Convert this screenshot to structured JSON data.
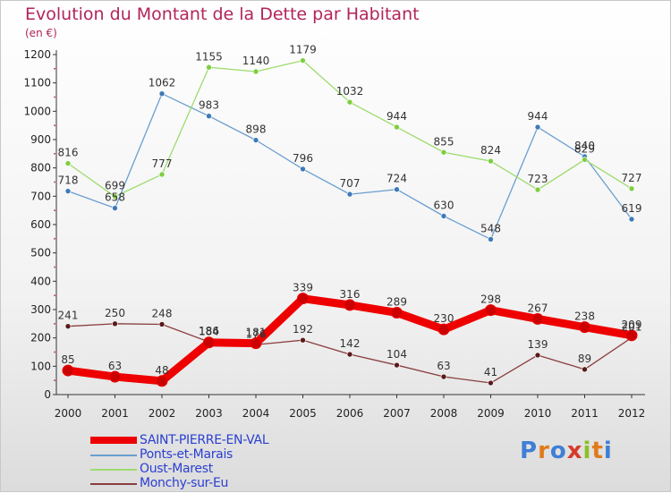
{
  "header": {
    "title": "Evolution du Montant de la Dette par Habitant",
    "subtitle": "(en €)"
  },
  "logo": {
    "text": "Proxiti",
    "letters": [
      {
        "ch": "P",
        "color": "#3f7fd6"
      },
      {
        "ch": "r",
        "color": "#e07b1c"
      },
      {
        "ch": "o",
        "color": "#3f7fd6"
      },
      {
        "ch": "x",
        "color": "#d83a2a"
      },
      {
        "ch": "i",
        "color": "#8cbf26"
      },
      {
        "ch": "t",
        "color": "#e07b1c"
      },
      {
        "ch": "i",
        "color": "#3f7fd6"
      }
    ]
  },
  "chart_data": {
    "type": "line",
    "title": "Evolution du Montant de la Dette par Habitant",
    "subtitle": "(en €)",
    "x": [
      "2000",
      "2001",
      "2002",
      "2003",
      "2004",
      "2005",
      "2006",
      "2007",
      "2008",
      "2009",
      "2010",
      "2011",
      "2012"
    ],
    "ylim": [
      0,
      1200
    ],
    "yticks": [
      0,
      100,
      200,
      300,
      400,
      500,
      600,
      700,
      800,
      900,
      1000,
      1100,
      1200
    ],
    "grid": false,
    "legend_position": "bottom-left",
    "series": [
      {
        "name": "SAINT-PIERRE-EN-VAL",
        "color": "#ee0000",
        "marker": "#cc0000",
        "values": [
          85,
          63,
          48,
          184,
          181,
          339,
          316,
          289,
          230,
          298,
          267,
          238,
          209
        ]
      },
      {
        "name": "Ponts-et-Marais",
        "color": "#6a9ed0",
        "marker": "#3d7ab8",
        "values": [
          718,
          658,
          1062,
          983,
          898,
          796,
          707,
          724,
          630,
          548,
          944,
          840,
          619
        ]
      },
      {
        "name": "Oust-Marest",
        "color": "#9edb6e",
        "marker": "#7ccf3e",
        "values": [
          816,
          699,
          777,
          1155,
          1140,
          1179,
          1032,
          944,
          855,
          824,
          723,
          829,
          727
        ]
      },
      {
        "name": "Monchy-sur-Eu",
        "color": "#8a3e3e",
        "marker": "#5a1a1a",
        "values": [
          241,
          250,
          248,
          186,
          176,
          192,
          142,
          104,
          63,
          41,
          139,
          89,
          201
        ]
      }
    ]
  }
}
